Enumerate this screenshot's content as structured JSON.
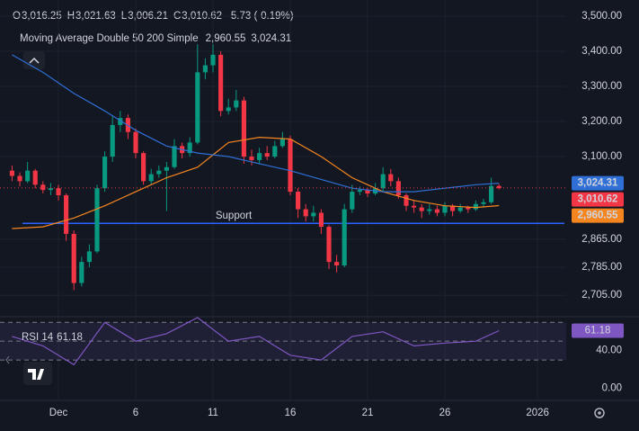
{
  "chart_data": [
    {
      "type": "candlestick",
      "header": [
        {
          "label": "O",
          "value": "3,016.25"
        },
        {
          "label": "H",
          "value": "3,021.63"
        },
        {
          "label": "L",
          "value": "3,006.21"
        },
        {
          "label": "C",
          "value": "3,010.62"
        }
      ],
      "change": "-5.73 (-0.19%)",
      "indicator_title": "Moving Average Double 50 200 Simple",
      "x": [
        -2,
        -1.5,
        -1,
        -0.5,
        0,
        0.5,
        1,
        1.5,
        2,
        2.5,
        3,
        3.5,
        4,
        4.5,
        5,
        5.5,
        6,
        6.5,
        7,
        7.5,
        8,
        8.5,
        9,
        9.5,
        10,
        10.5,
        11,
        11.5,
        12,
        12.5,
        13,
        13.5,
        14,
        14.5,
        15,
        15.5,
        16,
        16.5,
        17,
        17.5,
        18,
        18.5,
        19,
        19.5,
        20,
        20.5,
        21,
        21.5,
        22,
        22.5,
        23,
        23.5,
        24,
        24.5,
        25,
        25.5,
        26,
        26.5,
        27,
        27.5,
        28,
        28.5,
        29,
        29.5
      ],
      "open": [
        3060,
        3045,
        3030,
        3060,
        3020,
        3005,
        3010,
        2990,
        2880,
        2740,
        2800,
        2830,
        3010,
        3100,
        3190,
        3210,
        3170,
        3110,
        3030,
        3050,
        3060,
        3070,
        3130,
        3110,
        3140,
        3340,
        3360,
        3390,
        3230,
        3240,
        3260,
        3100,
        3090,
        3110,
        3100,
        3130,
        3150,
        3000,
        2950,
        2930,
        2940,
        2900,
        2800,
        2790,
        2950,
        3000,
        3005,
        2995,
        3010,
        3050,
        3030,
        2990,
        2960,
        2955,
        2945,
        2950,
        2940,
        2960,
        2945,
        2955,
        2950,
        2965,
        2970,
        3016.25
      ],
      "high": [
        3075,
        3055,
        3085,
        3065,
        3030,
        3025,
        3020,
        2995,
        2890,
        2815,
        2850,
        3020,
        3115,
        3215,
        3230,
        3220,
        3180,
        3115,
        3065,
        3075,
        3085,
        3150,
        3140,
        3155,
        3420,
        3380,
        3420,
        3400,
        3265,
        3290,
        3270,
        3120,
        3125,
        3130,
        3145,
        3170,
        3160,
        3010,
        2965,
        2960,
        2950,
        2905,
        2820,
        2965,
        3020,
        3015,
        3010,
        3025,
        3070,
        3065,
        3040,
        2995,
        2975,
        2965,
        2965,
        2960,
        2970,
        2965,
        2965,
        2960,
        2975,
        2980,
        3040,
        3021.63
      ],
      "low": [
        3030,
        3015,
        3025,
        3010,
        2995,
        2990,
        2975,
        2860,
        2720,
        2730,
        2785,
        2825,
        3000,
        3085,
        3170,
        3150,
        3095,
        3020,
        3020,
        3040,
        2945,
        3065,
        3095,
        3100,
        3135,
        3320,
        3340,
        3215,
        3220,
        3230,
        3080,
        3075,
        3080,
        3090,
        3095,
        3125,
        2990,
        2925,
        2915,
        2915,
        2880,
        2780,
        2770,
        2785,
        2940,
        2990,
        2985,
        2990,
        3000,
        3015,
        2980,
        2945,
        2940,
        2925,
        2935,
        2930,
        2930,
        2930,
        2940,
        2940,
        2945,
        2955,
        2965,
        3006.21
      ],
      "close": [
        3045,
        3030,
        3060,
        3020,
        3005,
        3010,
        2990,
        2880,
        2740,
        2800,
        2830,
        3010,
        3100,
        3190,
        3210,
        3170,
        3110,
        3030,
        3050,
        3060,
        3070,
        3130,
        3110,
        3140,
        3340,
        3360,
        3390,
        3230,
        3240,
        3260,
        3100,
        3090,
        3110,
        3100,
        3130,
        3150,
        3000,
        2950,
        2930,
        2940,
        2900,
        2800,
        2790,
        2950,
        3000,
        3005,
        2995,
        3010,
        3050,
        3030,
        2990,
        2960,
        2955,
        2945,
        2950,
        2940,
        2960,
        2945,
        2955,
        2950,
        2965,
        2970,
        3016.35,
        3010.62
      ],
      "up_color": "#089981",
      "down_color": "#f23645",
      "last_price_label": "3,010.62",
      "series": [
        {
          "color": "#f5861f",
          "last_label": "2,960.55",
          "x": [
            -2,
            0,
            2,
            4,
            6,
            8,
            10,
            12,
            14,
            16,
            18,
            20,
            22,
            24,
            26,
            28,
            29.5
          ],
          "values": [
            2895,
            2900,
            2925,
            2960,
            3000,
            3040,
            3070,
            3140,
            3155,
            3150,
            3100,
            3040,
            3000,
            2975,
            2960,
            2955,
            2960.55
          ]
        },
        {
          "color": "#2f6fd6",
          "last_label": "3,024.31",
          "x": [
            -2,
            0,
            2,
            4,
            6,
            8,
            10,
            12,
            14,
            16,
            18,
            20,
            22,
            24,
            26,
            28,
            29.5
          ],
          "values": [
            3390,
            3340,
            3280,
            3230,
            3175,
            3130,
            3110,
            3100,
            3080,
            3060,
            3035,
            3010,
            3000,
            3000,
            3010,
            3020,
            3024.31
          ]
        }
      ],
      "annotation": {
        "text": "Support",
        "value": 2910,
        "color": "#2962ff"
      },
      "xlim": [
        -2.78,
        33.85
      ],
      "xticks": [
        {
          "value": 1,
          "label": "Dec"
        },
        6,
        11,
        16,
        21,
        26,
        {
          "value": 32,
          "label": "2026"
        }
      ],
      "ylim": [
        2644,
        3546
      ],
      "yticks": [
        {
          "value": 3500,
          "label": "3,500.00"
        },
        {
          "value": 3400,
          "label": "3,400.00"
        },
        {
          "value": 3300,
          "label": "3,300.00"
        },
        {
          "value": 3200,
          "label": "3,200.00"
        },
        {
          "value": 3100,
          "label": "3,100.00"
        },
        {
          "value": 2865,
          "label": "2,865.00"
        },
        {
          "value": 2785,
          "label": "2,785.00"
        },
        {
          "value": 2705,
          "label": "2,705.00"
        }
      ],
      "grid": true
    },
    {
      "type": "line",
      "title": "RSI 14",
      "last_label": "61.18",
      "color": "#7e57c2",
      "x": [
        -2,
        0,
        2,
        4,
        6,
        8,
        10,
        12,
        14,
        16,
        18,
        20,
        22,
        24,
        26,
        28,
        29.5
      ],
      "values": [
        55,
        45,
        25,
        70,
        50,
        58,
        75,
        50,
        55,
        35,
        30,
        55,
        60,
        45,
        48,
        50,
        61.18
      ],
      "levels": [
        70,
        50,
        30
      ],
      "ylim": [
        -13,
        76
      ],
      "yticks": [
        {
          "value": 40,
          "label": "40.00"
        },
        {
          "value": 0,
          "label": "0.00"
        }
      ]
    }
  ]
}
